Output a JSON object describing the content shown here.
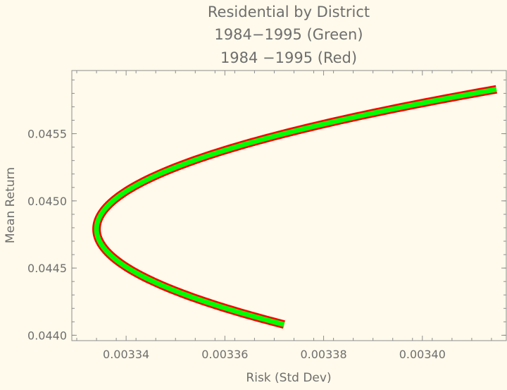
{
  "chart_data": {
    "type": "line",
    "title": "Residential by District",
    "subtitles": [
      "1984−1995 (Green)",
      "1984 −1995 (Red)"
    ],
    "xlabel": "Risk (Std Dev)",
    "ylabel": "Mean Return",
    "xlim": [
      0.003329,
      0.003417
    ],
    "ylim": [
      0.04396,
      0.04597
    ],
    "x_ticks": [
      {
        "value": 0.00334,
        "label": "0.00334"
      },
      {
        "value": 0.00336,
        "label": "0.00336"
      },
      {
        "value": 0.00338,
        "label": "0.00338"
      },
      {
        "value": 0.0034,
        "label": "0.00340"
      }
    ],
    "y_ticks": [
      {
        "value": 0.044,
        "label": "0.0440"
      },
      {
        "value": 0.0445,
        "label": "0.0445"
      },
      {
        "value": 0.045,
        "label": "0.0450"
      },
      {
        "value": 0.0455,
        "label": "0.0455"
      }
    ],
    "grid": false,
    "frontier": {
      "y_min": 0.04408,
      "y_max": 0.04583,
      "y_mvp": 0.04479,
      "x_mvp": 0.003334,
      "x_at_y_min": 0.003369,
      "x_at_y_max": 0.003415
    },
    "series": [
      {
        "color": "#00ff00",
        "role": "fill"
      },
      {
        "color": "#ff0000",
        "role": "outline"
      }
    ]
  }
}
